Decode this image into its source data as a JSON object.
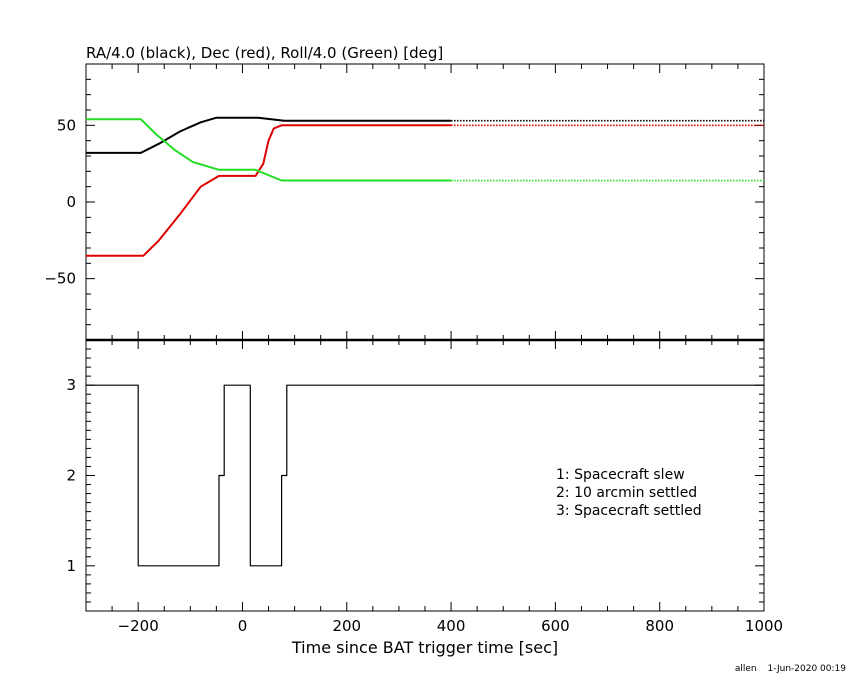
{
  "chart_data": [
    {
      "type": "line",
      "title": "RA/4.0 (black), Dec (red), Roll/4.0 (Green) [deg]",
      "xlim": [
        -300,
        1000
      ],
      "ylim": [
        -90,
        90
      ],
      "yticks": [
        -50,
        0,
        50
      ],
      "series": [
        {
          "color": "#000000",
          "x": [
            -300,
            -195,
            -160,
            -120,
            -80,
            -50,
            30,
            80,
            400
          ],
          "y": [
            32,
            32,
            38,
            46,
            52,
            55,
            55,
            53,
            53
          ],
          "dotted_until": 1000
        },
        {
          "color": "#e00000",
          "x": [
            -300,
            -190,
            -160,
            -120,
            -80,
            -45,
            25,
            40,
            50,
            60,
            75,
            400
          ],
          "y": [
            -35,
            -35,
            -25,
            -8,
            10,
            17,
            17,
            25,
            40,
            48,
            50,
            50
          ],
          "dotted_until": 1000
        },
        {
          "color": "#22dd22",
          "x": [
            -300,
            -195,
            -165,
            -130,
            -95,
            -45,
            25,
            75,
            400
          ],
          "y": [
            54,
            54,
            44,
            34,
            26,
            21,
            21,
            14,
            14
          ],
          "dotted_until": 1000
        }
      ]
    },
    {
      "type": "line",
      "step": true,
      "xlabel": "Time since BAT trigger time [sec]",
      "xlim": [
        -300,
        1000
      ],
      "ylim": [
        0.5,
        3.5
      ],
      "xticks": [
        -200,
        0,
        200,
        400,
        600,
        800,
        1000
      ],
      "yticks": [
        1,
        2,
        3
      ],
      "legend": [
        "1: Spacecraft slew",
        "2: 10 arcmin settled",
        "3: Spacecraft settled"
      ],
      "series": [
        {
          "color": "#000000",
          "x": [
            -300,
            -200,
            -200,
            -45,
            -45,
            -35,
            -35,
            15,
            15,
            75,
            75,
            85,
            85,
            1000
          ],
          "y": [
            3,
            3,
            1,
            1,
            2,
            2,
            3,
            3,
            1,
            1,
            2,
            2,
            3,
            3
          ]
        }
      ]
    }
  ],
  "footer": {
    "user": "allen",
    "date": "1-Jun-2020 00:19"
  }
}
